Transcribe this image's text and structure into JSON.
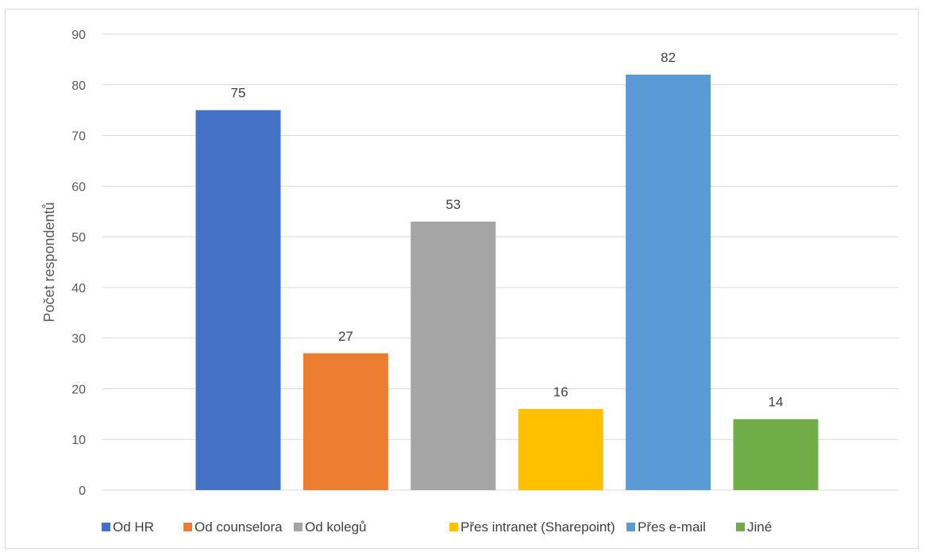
{
  "chart_data": {
    "type": "bar",
    "title": "",
    "xlabel": "",
    "ylabel": "Počet respondentů",
    "ylim": [
      0,
      90
    ],
    "yticks": [
      0,
      10,
      20,
      30,
      40,
      50,
      60,
      70,
      80,
      90
    ],
    "grid": true,
    "legend_position": "bottom",
    "categories": [
      "Od HR",
      "Od counselora",
      "Od kolegů",
      "Přes intranet (Sharepoint)",
      "Přes e-mail",
      "Jiné"
    ],
    "values": [
      75,
      27,
      53,
      16,
      82,
      14
    ],
    "colors": [
      "#4472C4",
      "#ED7D31",
      "#A5A5A5",
      "#FFC000",
      "#5B9BD5",
      "#70AD47"
    ],
    "data_labels": [
      "75",
      "27",
      "53",
      "16",
      "82",
      "14"
    ]
  }
}
